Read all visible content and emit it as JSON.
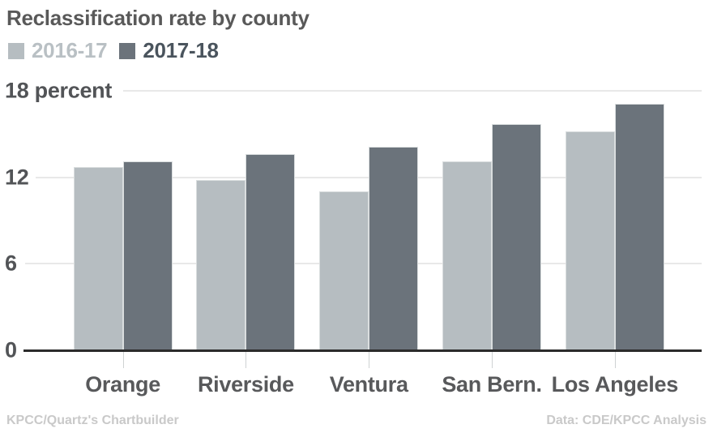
{
  "title": "Reclassification rate by county",
  "legend": {
    "items": [
      {
        "label": "2016-17",
        "swatch_color": "#b6bdc1",
        "text_color": "#b9c0c4"
      },
      {
        "label": "2017-18",
        "swatch_color": "#6b737b",
        "text_color": "#4a545d"
      }
    ]
  },
  "y_axis": {
    "max": 18,
    "ticks": [
      {
        "value": 18,
        "label": "18 percent"
      },
      {
        "value": 12,
        "label": "12"
      },
      {
        "value": 6,
        "label": "6"
      },
      {
        "value": 0,
        "label": "0"
      }
    ]
  },
  "footer": {
    "left": "KPCC/Quartz's Chartbuilder",
    "right": "Data: CDE/KPCC Analysis"
  },
  "chart_data": {
    "type": "bar",
    "title": "Reclassification rate by county",
    "categories": [
      "Orange",
      "Riverside",
      "Ventura",
      "San Bern.",
      "Los Angeles"
    ],
    "series": [
      {
        "name": "2016-17",
        "color": "#b6bdc1",
        "values": [
          12.7,
          11.8,
          11.0,
          13.1,
          15.2
        ]
      },
      {
        "name": "2017-18",
        "color": "#6b737b",
        "values": [
          13.1,
          13.6,
          14.1,
          15.7,
          17.1
        ]
      }
    ],
    "xlabel": "",
    "ylabel": "percent",
    "ylim": [
      0,
      18
    ],
    "grid": true,
    "legend_position": "top-left",
    "gridline_color": "#e8e8e8",
    "baseline_color": "#2b2b2b"
  }
}
